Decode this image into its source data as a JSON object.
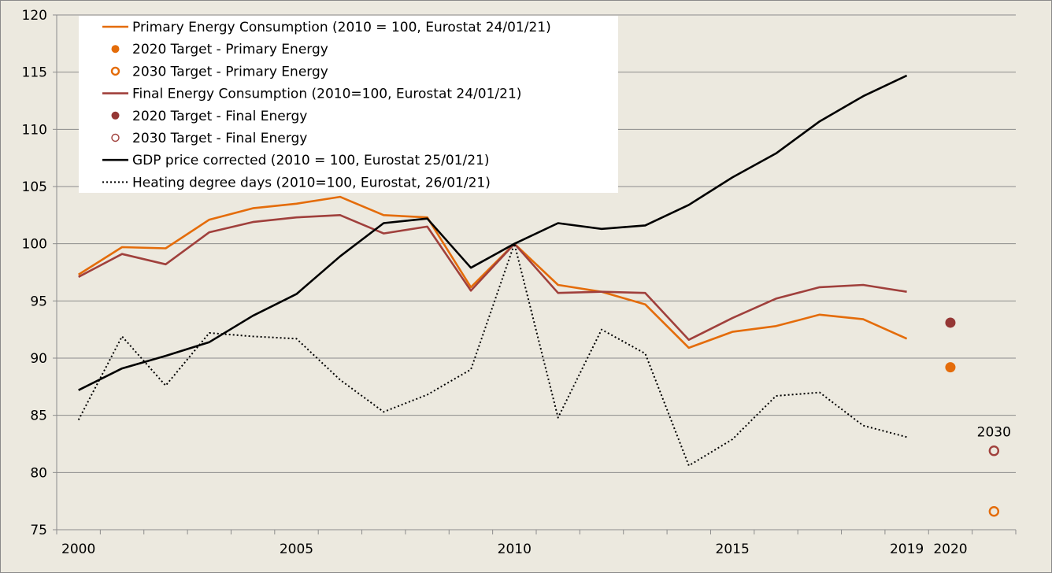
{
  "chart_data": {
    "type": "line",
    "title": "",
    "xlabel": "",
    "ylabel": "",
    "ylim": [
      75,
      120
    ],
    "yticks": [
      75,
      80,
      85,
      90,
      95,
      100,
      105,
      110,
      115,
      120
    ],
    "x_categories": [
      2000,
      2001,
      2002,
      2003,
      2004,
      2005,
      2006,
      2007,
      2008,
      2009,
      2010,
      2011,
      2012,
      2013,
      2014,
      2015,
      2016,
      2017,
      2018,
      2019,
      2020,
      2030
    ],
    "x_tick_labels": [
      {
        "x": 2000,
        "label": "2000"
      },
      {
        "x": 2005,
        "label": "2005"
      },
      {
        "x": 2010,
        "label": "2010"
      },
      {
        "x": 2015,
        "label": "2015"
      },
      {
        "x": 2019,
        "label": "2019"
      },
      {
        "x": 2020,
        "label": "2020"
      }
    ],
    "grid": true,
    "legend_position": "top-left",
    "series": [
      {
        "name": "Primary Energy Consumption (2010 = 100, Eurostat 24/01/21)",
        "kind": "line",
        "style": "solid",
        "color": "#E46C0A",
        "x": [
          2000,
          2001,
          2002,
          2003,
          2004,
          2005,
          2006,
          2007,
          2008,
          2009,
          2010,
          2011,
          2012,
          2013,
          2014,
          2015,
          2016,
          2017,
          2018,
          2019
        ],
        "values": [
          97.3,
          99.7,
          99.6,
          102.1,
          103.1,
          103.5,
          104.1,
          102.5,
          102.3,
          96.2,
          100.0,
          96.4,
          95.8,
          94.7,
          90.9,
          92.3,
          92.8,
          93.8,
          93.4,
          91.7
        ]
      },
      {
        "name": "2020 Target - Primary Energy",
        "kind": "marker",
        "marker": "filled",
        "color": "#E46C0A",
        "x": [
          2020
        ],
        "values": [
          89.2
        ]
      },
      {
        "name": "2030 Target - Primary Energy",
        "kind": "marker",
        "marker": "open",
        "color": "#E46C0A",
        "x": [
          2030
        ],
        "values": [
          76.6
        ]
      },
      {
        "name": "Final Energy Consumption (2010=100, Eurostat 24/01/21)",
        "kind": "line",
        "style": "solid",
        "color": "#A0403C",
        "x": [
          2000,
          2001,
          2002,
          2003,
          2004,
          2005,
          2006,
          2007,
          2008,
          2009,
          2010,
          2011,
          2012,
          2013,
          2014,
          2015,
          2016,
          2017,
          2018,
          2019
        ],
        "values": [
          97.1,
          99.1,
          98.2,
          101.0,
          101.9,
          102.3,
          102.5,
          100.9,
          101.5,
          95.9,
          100.0,
          95.7,
          95.8,
          95.7,
          91.6,
          93.5,
          95.2,
          96.2,
          96.4,
          95.8
        ]
      },
      {
        "name": "2020 Target - Final Energy",
        "kind": "marker",
        "marker": "filled",
        "color": "#953735",
        "x": [
          2020
        ],
        "values": [
          93.1
        ]
      },
      {
        "name": "2030 Target - Final Energy",
        "kind": "marker",
        "marker": "open",
        "color": "#A0403C",
        "x": [
          2030
        ],
        "values": [
          81.9
        ]
      },
      {
        "name": "GDP price corrected (2010 = 100, Eurostat 25/01/21)",
        "kind": "line",
        "style": "solid",
        "color": "#000000",
        "x": [
          2000,
          2001,
          2002,
          2003,
          2004,
          2005,
          2006,
          2007,
          2008,
          2009,
          2010,
          2011,
          2012,
          2013,
          2014,
          2015,
          2016,
          2017,
          2018,
          2019
        ],
        "values": [
          87.2,
          89.1,
          90.2,
          91.4,
          93.7,
          95.6,
          98.9,
          101.8,
          102.2,
          97.9,
          100.0,
          101.8,
          101.3,
          101.6,
          103.4,
          105.8,
          107.9,
          110.7,
          112.9,
          114.7
        ]
      },
      {
        "name": "Heating degree days (2010=100, Eurostat, 26/01/21)",
        "kind": "line",
        "style": "dotted",
        "color": "#000000",
        "x": [
          2000,
          2001,
          2002,
          2003,
          2004,
          2005,
          2006,
          2007,
          2008,
          2009,
          2010,
          2011,
          2012,
          2013,
          2014,
          2015,
          2016,
          2017,
          2018,
          2019
        ],
        "values": [
          84.6,
          91.9,
          87.6,
          92.2,
          91.9,
          91.7,
          88.1,
          85.3,
          86.8,
          89.0,
          100.0,
          84.8,
          92.5,
          90.4,
          80.6,
          82.9,
          86.7,
          87.0,
          84.1,
          83.1
        ]
      }
    ],
    "annotations": [
      {
        "text": "2030",
        "x": 2030,
        "y": 81.9
      }
    ]
  }
}
